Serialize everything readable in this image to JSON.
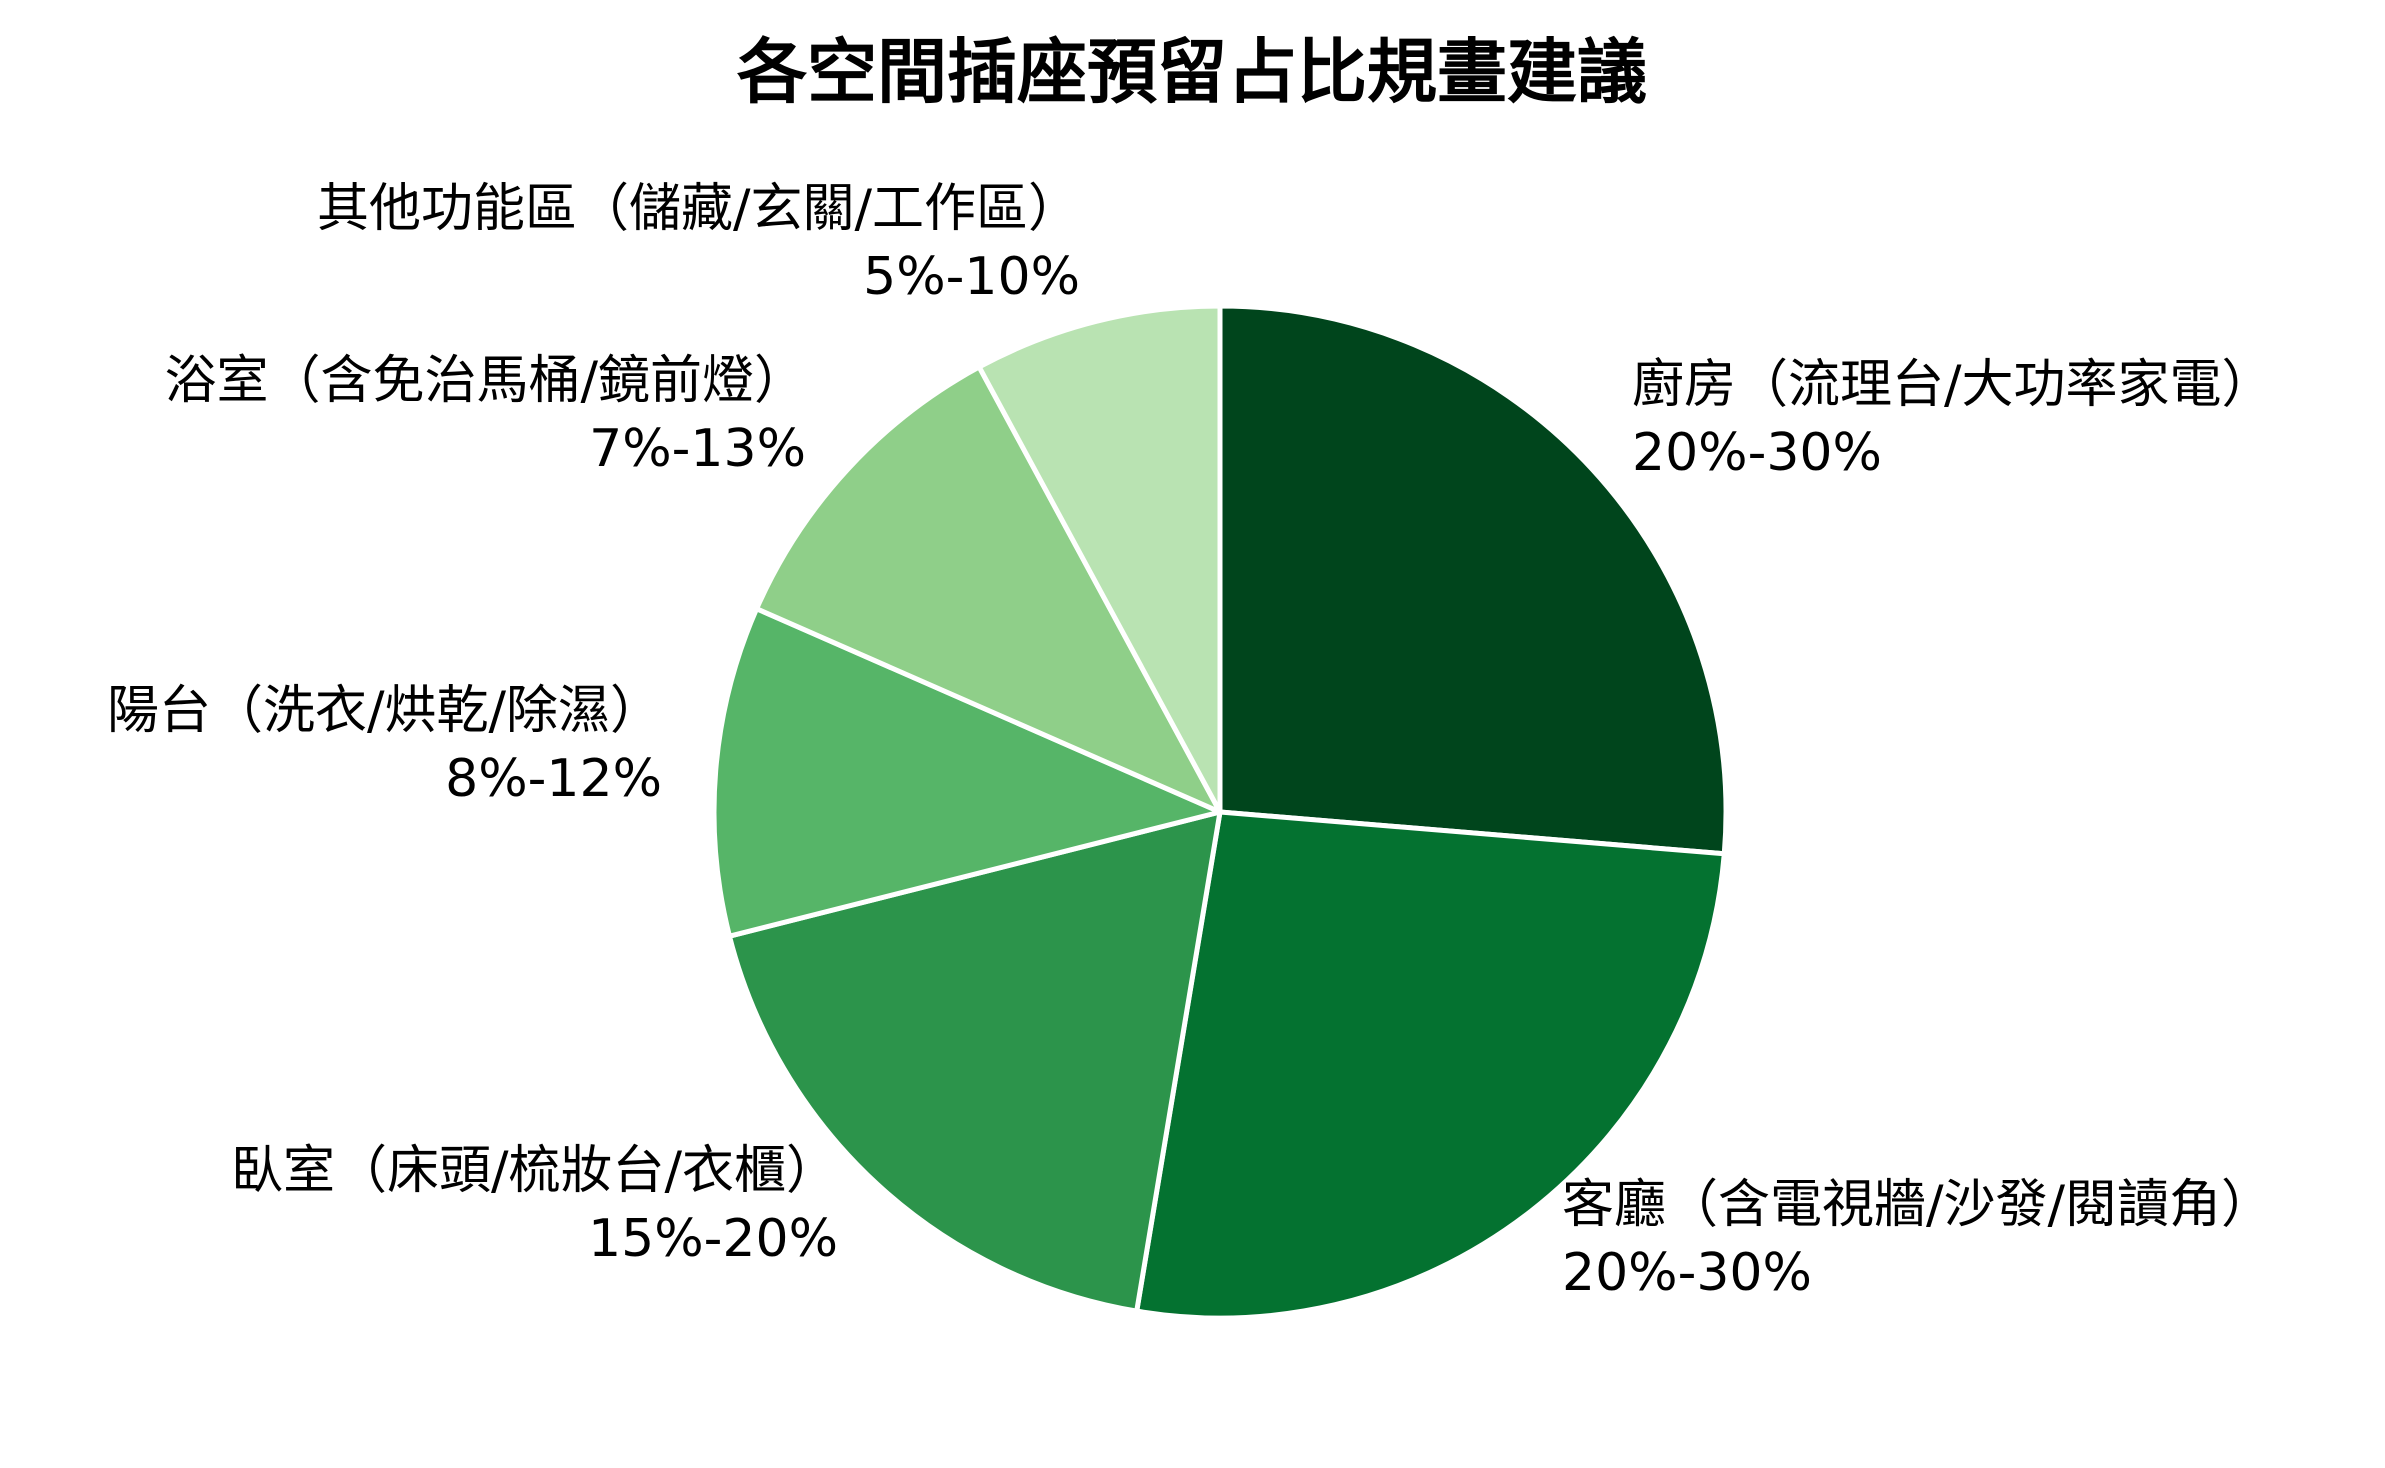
{
  "chart_data": {
    "type": "pie",
    "title": "各空間插座預留占比規畫建議",
    "start": "12 o'clock",
    "direction": "clockwise",
    "legend": "none",
    "slices": [
      {
        "label": "廚房（流理台/大功率家電）",
        "range": "20%-30%",
        "value": 25,
        "color": "#00451c"
      },
      {
        "label": "客廳（含電視牆/沙發/閱讀角）",
        "range": "20%-30%",
        "value": 25,
        "color": "#047230"
      },
      {
        "label": "臥室（床頭/梳妝台/衣櫃）",
        "range": "15%-20%",
        "value": 17.5,
        "color": "#2c944b"
      },
      {
        "label": "陽台（洗衣/烘乾/除濕）",
        "range": "8%-12%",
        "value": 10,
        "color": "#56b568"
      },
      {
        "label": "浴室（含免治馬桶/鏡前燈）",
        "range": "7%-13%",
        "value": 10,
        "color": "#8fcf89"
      },
      {
        "label": "其他功能區（儲藏/玄關/工作區）",
        "range": "5%-10%",
        "value": 7.5,
        "color": "#b9e3b2"
      }
    ]
  }
}
